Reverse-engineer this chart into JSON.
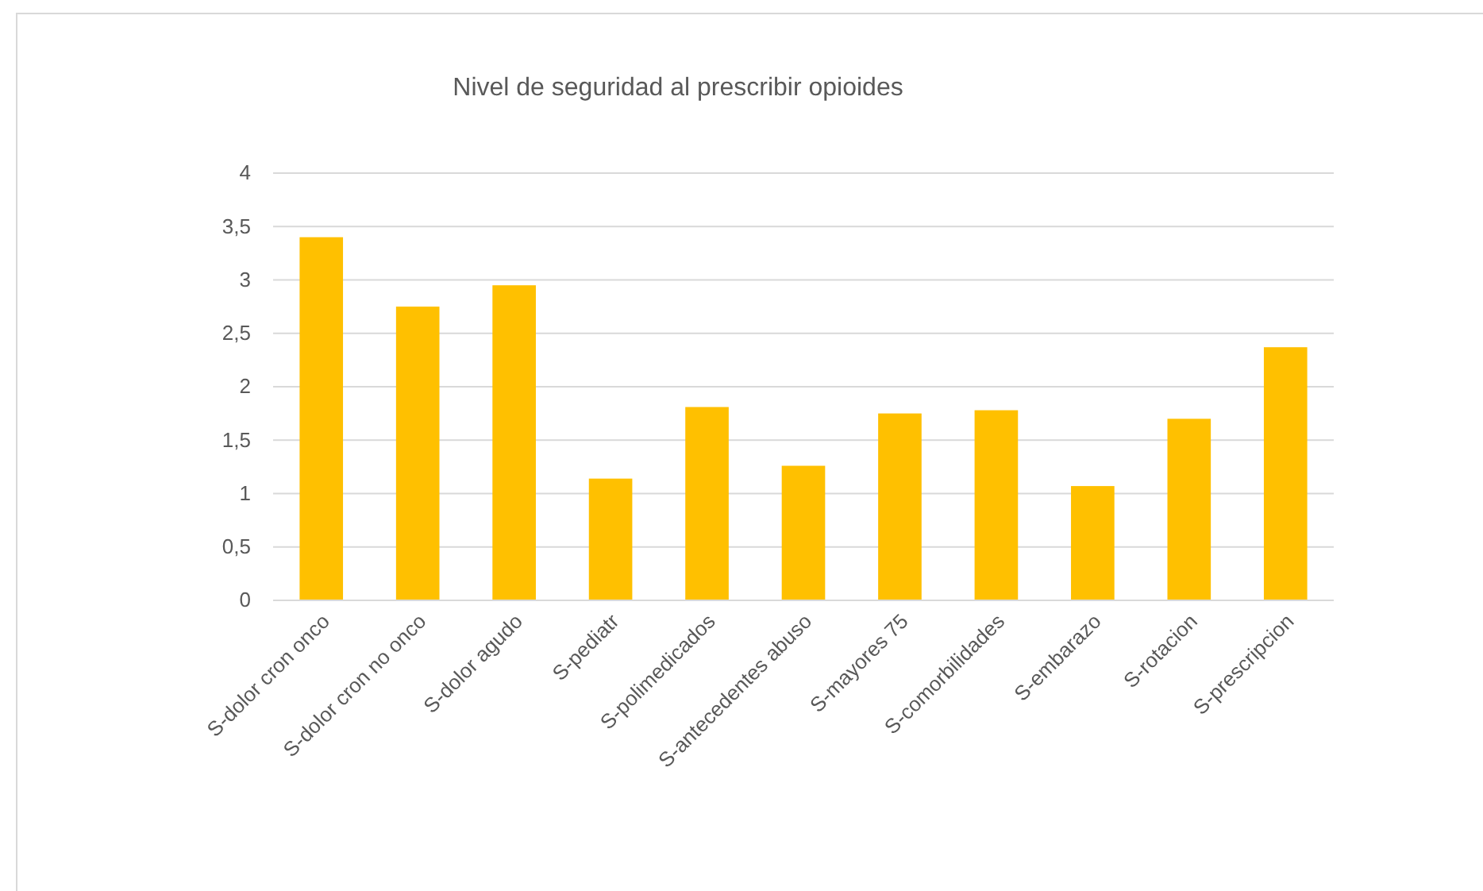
{
  "chart_data": {
    "type": "bar",
    "title": "Nivel de seguridad al prescribir opioides",
    "categories": [
      "S-dolor cron onco",
      "S-dolor cron no onco",
      "S-dolor agudo",
      "S-pediatr",
      "S-polimedicados",
      "S-antecedentes abuso",
      "S-mayores 75",
      "S-comorbilidades",
      "S-embarazo",
      "S-rotacion",
      "S-prescripcion"
    ],
    "values": [
      3.4,
      2.75,
      2.95,
      1.14,
      1.81,
      1.26,
      1.75,
      1.78,
      1.07,
      1.7,
      2.37
    ],
    "color": "#ffc000",
    "ylim": [
      0,
      4
    ],
    "yticks": [
      0,
      {
        "value": 0.5,
        "label": "0,5"
      },
      1,
      {
        "value": 1.5,
        "label": "1,5"
      },
      2,
      {
        "value": 2.5,
        "label": "2,5"
      },
      3,
      {
        "value": 3.5,
        "label": "3,5"
      },
      4
    ],
    "grid": "y"
  }
}
